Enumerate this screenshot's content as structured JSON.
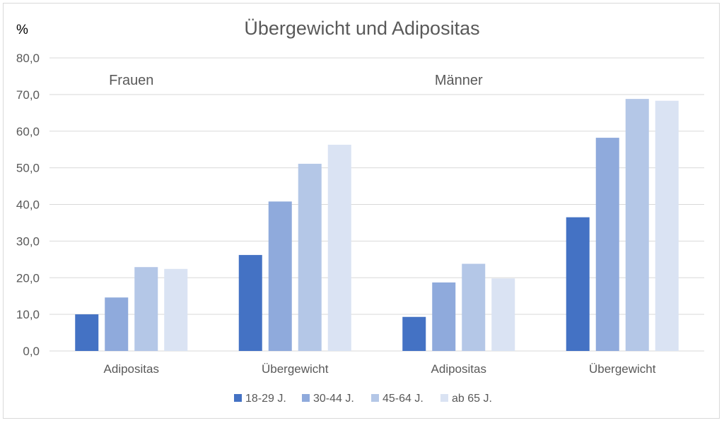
{
  "chart_data": {
    "type": "bar",
    "title": "Übergewicht und Adipositas",
    "ylabel": "%",
    "ylim": [
      0,
      80
    ],
    "yticks": [
      "0,0",
      "10,0",
      "20,0",
      "30,0",
      "40,0",
      "50,0",
      "60,0",
      "70,0",
      "80,0"
    ],
    "grid": true,
    "legend_position": "bottom",
    "groups": [
      {
        "label": "Frauen",
        "categories": [
          {
            "label": "Adipositas",
            "values": [
              10.0,
              14.6,
              22.9,
              22.4
            ]
          },
          {
            "label": "Übergewicht",
            "values": [
              26.2,
              40.8,
              51.1,
              56.3
            ]
          }
        ]
      },
      {
        "label": "Männer",
        "categories": [
          {
            "label": "Adipositas",
            "values": [
              9.3,
              18.7,
              23.8,
              19.8
            ]
          },
          {
            "label": "Übergewicht",
            "values": [
              36.5,
              58.2,
              68.8,
              68.3
            ]
          }
        ]
      }
    ],
    "series": [
      {
        "name": "18-29 J.",
        "color": "#4472c4"
      },
      {
        "name": "30-44 J.",
        "color": "#8faadc"
      },
      {
        "name": "45-64 J.",
        "color": "#b4c7e7"
      },
      {
        "name": "ab 65 J.",
        "color": "#dae3f3"
      }
    ]
  }
}
